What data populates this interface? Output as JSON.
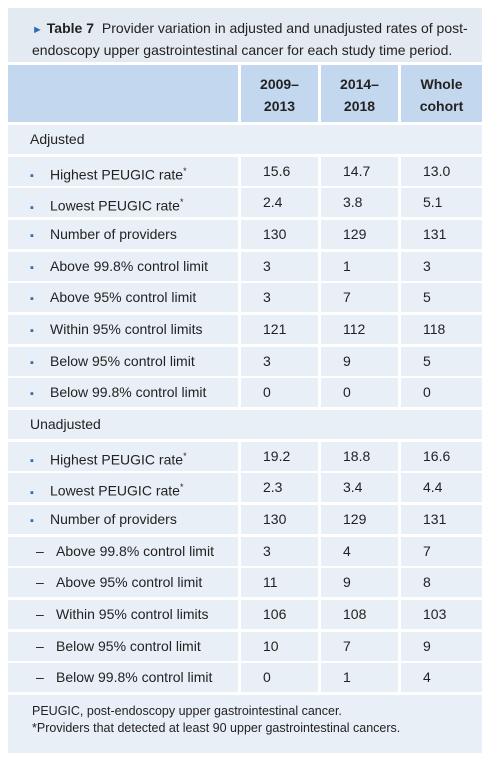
{
  "caption": {
    "marker": "►",
    "label": "Table 7",
    "text": "Provider variation in adjusted and unadjusted rates of post-endoscopy upper gastrointestinal cancer for each study time period."
  },
  "table": {
    "columns": [
      [
        "2009–",
        "2013"
      ],
      [
        "2014–",
        "2018"
      ],
      [
        "Whole",
        "cohort"
      ]
    ],
    "sections": [
      {
        "title": "Adjusted",
        "rows": [
          {
            "marker": "▪",
            "label": "Highest PEUGIC rate",
            "note": "*",
            "values": [
              "15.6",
              "14.7",
              "13.0"
            ]
          },
          {
            "marker": "▪",
            "label": "Lowest PEUGIC rate",
            "note": "*",
            "values": [
              "2.4",
              "3.8",
              "5.1"
            ]
          },
          {
            "marker": "▪",
            "label": "Number of providers",
            "values": [
              "130",
              "129",
              "131"
            ]
          },
          {
            "marker": "▪",
            "label": "Above 99.8% control limit",
            "values": [
              "3",
              "1",
              "3"
            ]
          },
          {
            "marker": "▪",
            "label": "Above 95% control limit",
            "values": [
              "3",
              "7",
              "5"
            ]
          },
          {
            "marker": "▪",
            "label": "Within 95% control limits",
            "values": [
              "121",
              "112",
              "118"
            ]
          },
          {
            "marker": "▪",
            "label": "Below 95% control limit",
            "values": [
              "3",
              "9",
              "5"
            ]
          },
          {
            "marker": "▪",
            "label": "Below 99.8% control limit",
            "values": [
              "0",
              "0",
              "0"
            ]
          }
        ]
      },
      {
        "title": "Unadjusted",
        "rows": [
          {
            "marker": "▪",
            "label": "Highest PEUGIC rate",
            "note": "*",
            "values": [
              "19.2",
              "18.8",
              "16.6"
            ]
          },
          {
            "marker": "▪",
            "label": "Lowest PEUGIC rate",
            "note": "*",
            "values": [
              "2.3",
              "3.4",
              "4.4"
            ]
          },
          {
            "marker": "▪",
            "label": "Number of providers",
            "values": [
              "130",
              "129",
              "131"
            ]
          },
          {
            "marker": "–",
            "label": "Above 99.8% control limit",
            "values": [
              "3",
              "4",
              "7"
            ]
          },
          {
            "marker": "–",
            "label": "Above 95% control limit",
            "values": [
              "11",
              "9",
              "8"
            ]
          },
          {
            "marker": "–",
            "label": "Within 95% control limits",
            "values": [
              "106",
              "108",
              "103"
            ]
          },
          {
            "marker": "–",
            "label": "Below 95% control limit",
            "values": [
              "10",
              "7",
              "9"
            ]
          },
          {
            "marker": "–",
            "label": "Below 99.8% control limit",
            "values": [
              "0",
              "1",
              "4"
            ]
          }
        ]
      }
    ]
  },
  "footnotes": [
    "PEUGIC, post-endoscopy upper gastrointestinal cancer.",
    "*Providers that detected at least 90 upper gastrointestinal cancers."
  ]
}
